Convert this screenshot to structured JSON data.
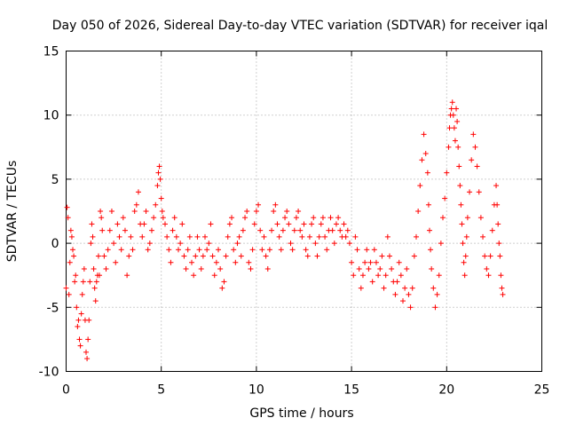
{
  "chart_data": {
    "type": "scatter",
    "title": "Day 050 of 2026, Sidereal Day-to-day VTEC variation (SDTVAR) for receiver iqal",
    "xlabel": "GPS time / hours",
    "ylabel": "SDTVAR / TECUs",
    "xlim": [
      0,
      25
    ],
    "ylim": [
      -10,
      15
    ],
    "x_ticks": [
      0,
      5,
      10,
      15,
      20,
      25
    ],
    "x_tick_labels": [
      "0",
      "5",
      "10",
      "15",
      "20",
      "25"
    ],
    "y_ticks": [
      -10,
      -5,
      0,
      5,
      10,
      15
    ],
    "y_tick_labels": [
      "-10",
      "-5",
      "0",
      "5",
      "10",
      "15"
    ],
    "grid": true,
    "marker": "+",
    "color": "#ff0000",
    "series": [
      {
        "name": "SDTVAR",
        "points": [
          [
            0.0,
            -3.5
          ],
          [
            0.05,
            2.8
          ],
          [
            0.1,
            2.0
          ],
          [
            0.15,
            -4.0
          ],
          [
            0.2,
            -1.5
          ],
          [
            0.25,
            1.0
          ],
          [
            0.3,
            0.5
          ],
          [
            0.35,
            -0.5
          ],
          [
            0.4,
            -1.0
          ],
          [
            0.45,
            -3.0
          ],
          [
            0.5,
            -2.5
          ],
          [
            0.55,
            -5.0
          ],
          [
            0.6,
            -6.5
          ],
          [
            0.65,
            -6.0
          ],
          [
            0.7,
            -7.5
          ],
          [
            0.75,
            -8.0
          ],
          [
            0.8,
            -5.5
          ],
          [
            0.85,
            -4.0
          ],
          [
            0.9,
            -3.0
          ],
          [
            0.95,
            -2.0
          ],
          [
            1.0,
            -6.0
          ],
          [
            1.05,
            -8.5
          ],
          [
            1.1,
            -9.0
          ],
          [
            1.15,
            -7.5
          ],
          [
            1.2,
            -6.0
          ],
          [
            1.25,
            -3.0
          ],
          [
            1.3,
            0.0
          ],
          [
            1.35,
            1.5
          ],
          [
            1.4,
            0.5
          ],
          [
            1.45,
            -2.0
          ],
          [
            1.5,
            -3.5
          ],
          [
            1.55,
            -4.5
          ],
          [
            1.6,
            -3.0
          ],
          [
            1.65,
            -2.5
          ],
          [
            1.7,
            -1.0
          ],
          [
            1.75,
            -2.5
          ],
          [
            1.8,
            2.5
          ],
          [
            1.85,
            2.0
          ],
          [
            1.9,
            1.0
          ],
          [
            2.0,
            -1.0
          ],
          [
            2.1,
            -2.0
          ],
          [
            2.2,
            -0.5
          ],
          [
            2.3,
            1.0
          ],
          [
            2.4,
            2.5
          ],
          [
            2.5,
            0.0
          ],
          [
            2.6,
            -1.5
          ],
          [
            2.7,
            1.5
          ],
          [
            2.8,
            0.5
          ],
          [
            2.9,
            -0.5
          ],
          [
            3.0,
            2.0
          ],
          [
            3.1,
            1.0
          ],
          [
            3.2,
            -2.5
          ],
          [
            3.3,
            -1.0
          ],
          [
            3.4,
            0.5
          ],
          [
            3.5,
            -0.5
          ],
          [
            3.6,
            2.5
          ],
          [
            3.7,
            3.0
          ],
          [
            3.8,
            4.0
          ],
          [
            3.9,
            1.5
          ],
          [
            4.0,
            0.5
          ],
          [
            4.1,
            1.5
          ],
          [
            4.2,
            2.5
          ],
          [
            4.3,
            -0.5
          ],
          [
            4.4,
            0.0
          ],
          [
            4.5,
            1.0
          ],
          [
            4.6,
            2.0
          ],
          [
            4.7,
            3.0
          ],
          [
            4.8,
            4.5
          ],
          [
            4.85,
            5.5
          ],
          [
            4.9,
            6.0
          ],
          [
            4.95,
            5.0
          ],
          [
            5.0,
            3.5
          ],
          [
            5.05,
            2.5
          ],
          [
            5.1,
            2.0
          ],
          [
            5.2,
            1.5
          ],
          [
            5.3,
            0.5
          ],
          [
            5.4,
            -0.5
          ],
          [
            5.5,
            -1.5
          ],
          [
            5.6,
            1.0
          ],
          [
            5.7,
            2.0
          ],
          [
            5.8,
            0.5
          ],
          [
            5.9,
            -0.5
          ],
          [
            6.0,
            0.0
          ],
          [
            6.1,
            1.5
          ],
          [
            6.2,
            -1.0
          ],
          [
            6.3,
            -2.0
          ],
          [
            6.4,
            -0.5
          ],
          [
            6.5,
            0.5
          ],
          [
            6.6,
            -1.5
          ],
          [
            6.7,
            -2.5
          ],
          [
            6.8,
            -1.0
          ],
          [
            6.9,
            0.5
          ],
          [
            7.0,
            -0.5
          ],
          [
            7.1,
            -2.0
          ],
          [
            7.2,
            -1.0
          ],
          [
            7.3,
            0.5
          ],
          [
            7.4,
            -0.5
          ],
          [
            7.5,
            0.0
          ],
          [
            7.6,
            1.5
          ],
          [
            7.7,
            -1.0
          ],
          [
            7.8,
            -2.5
          ],
          [
            7.9,
            -1.5
          ],
          [
            8.0,
            -0.5
          ],
          [
            8.1,
            -2.0
          ],
          [
            8.2,
            -3.5
          ],
          [
            8.3,
            -3.0
          ],
          [
            8.4,
            -1.0
          ],
          [
            8.5,
            0.5
          ],
          [
            8.6,
            1.5
          ],
          [
            8.7,
            2.0
          ],
          [
            8.8,
            -0.5
          ],
          [
            8.9,
            -1.5
          ],
          [
            9.0,
            0.0
          ],
          [
            9.1,
            0.5
          ],
          [
            9.2,
            -1.0
          ],
          [
            9.3,
            1.0
          ],
          [
            9.4,
            2.0
          ],
          [
            9.5,
            2.5
          ],
          [
            9.6,
            -1.5
          ],
          [
            9.7,
            -2.0
          ],
          [
            9.8,
            -0.5
          ],
          [
            9.9,
            1.5
          ],
          [
            10.0,
            2.5
          ],
          [
            10.1,
            3.0
          ],
          [
            10.2,
            1.0
          ],
          [
            10.3,
            -0.5
          ],
          [
            10.4,
            0.5
          ],
          [
            10.5,
            -1.0
          ],
          [
            10.6,
            -2.0
          ],
          [
            10.7,
            -0.5
          ],
          [
            10.8,
            1.0
          ],
          [
            10.9,
            2.5
          ],
          [
            11.0,
            3.0
          ],
          [
            11.1,
            1.5
          ],
          [
            11.2,
            0.5
          ],
          [
            11.3,
            -0.5
          ],
          [
            11.4,
            1.0
          ],
          [
            11.5,
            2.0
          ],
          [
            11.6,
            2.5
          ],
          [
            11.7,
            1.5
          ],
          [
            11.8,
            0.0
          ],
          [
            11.9,
            -0.5
          ],
          [
            12.0,
            1.0
          ],
          [
            12.1,
            2.0
          ],
          [
            12.2,
            2.5
          ],
          [
            12.3,
            1.0
          ],
          [
            12.4,
            0.5
          ],
          [
            12.5,
            1.5
          ],
          [
            12.6,
            -0.5
          ],
          [
            12.7,
            -1.0
          ],
          [
            12.8,
            0.5
          ],
          [
            12.9,
            1.5
          ],
          [
            13.0,
            2.0
          ],
          [
            13.1,
            0.0
          ],
          [
            13.2,
            -1.0
          ],
          [
            13.3,
            0.5
          ],
          [
            13.4,
            1.5
          ],
          [
            13.5,
            2.0
          ],
          [
            13.6,
            0.5
          ],
          [
            13.7,
            -0.5
          ],
          [
            13.8,
            1.0
          ],
          [
            13.9,
            2.0
          ],
          [
            14.0,
            1.0
          ],
          [
            14.1,
            0.0
          ],
          [
            14.2,
            1.5
          ],
          [
            14.3,
            2.0
          ],
          [
            14.4,
            1.0
          ],
          [
            14.5,
            0.5
          ],
          [
            14.6,
            1.5
          ],
          [
            14.7,
            0.5
          ],
          [
            14.8,
            1.0
          ],
          [
            14.9,
            0.0
          ],
          [
            15.0,
            -1.5
          ],
          [
            15.1,
            -2.5
          ],
          [
            15.2,
            0.5
          ],
          [
            15.3,
            -0.5
          ],
          [
            15.4,
            -2.0
          ],
          [
            15.5,
            -3.5
          ],
          [
            15.6,
            -2.5
          ],
          [
            15.7,
            -1.5
          ],
          [
            15.8,
            -0.5
          ],
          [
            15.9,
            -2.0
          ],
          [
            16.0,
            -1.5
          ],
          [
            16.1,
            -3.0
          ],
          [
            16.2,
            -0.5
          ],
          [
            16.3,
            -1.5
          ],
          [
            16.4,
            -2.5
          ],
          [
            16.5,
            -2.0
          ],
          [
            16.6,
            -1.0
          ],
          [
            16.7,
            -3.5
          ],
          [
            16.8,
            -2.5
          ],
          [
            16.9,
            0.5
          ],
          [
            17.0,
            -1.0
          ],
          [
            17.1,
            -2.0
          ],
          [
            17.2,
            -3.0
          ],
          [
            17.3,
            -4.0
          ],
          [
            17.4,
            -3.0
          ],
          [
            17.5,
            -1.5
          ],
          [
            17.6,
            -2.5
          ],
          [
            17.7,
            -4.5
          ],
          [
            17.8,
            -3.5
          ],
          [
            17.9,
            -2.0
          ],
          [
            18.0,
            -4.0
          ],
          [
            18.1,
            -5.0
          ],
          [
            18.2,
            -3.5
          ],
          [
            18.3,
            -1.0
          ],
          [
            18.4,
            0.5
          ],
          [
            18.5,
            2.5
          ],
          [
            18.6,
            4.5
          ],
          [
            18.7,
            6.5
          ],
          [
            18.8,
            8.5
          ],
          [
            18.9,
            7.0
          ],
          [
            19.0,
            5.5
          ],
          [
            19.05,
            3.0
          ],
          [
            19.1,
            1.0
          ],
          [
            19.15,
            -0.5
          ],
          [
            19.2,
            -2.0
          ],
          [
            19.3,
            -3.5
          ],
          [
            19.4,
            -5.0
          ],
          [
            19.5,
            -4.0
          ],
          [
            19.6,
            -2.5
          ],
          [
            19.7,
            0.0
          ],
          [
            19.8,
            2.0
          ],
          [
            19.9,
            3.5
          ],
          [
            20.0,
            5.5
          ],
          [
            20.1,
            7.5
          ],
          [
            20.15,
            9.0
          ],
          [
            20.2,
            10.0
          ],
          [
            20.25,
            10.5
          ],
          [
            20.3,
            11.0
          ],
          [
            20.35,
            10.0
          ],
          [
            20.4,
            9.0
          ],
          [
            20.45,
            8.0
          ],
          [
            20.5,
            10.5
          ],
          [
            20.55,
            9.5
          ],
          [
            20.6,
            7.5
          ],
          [
            20.65,
            6.0
          ],
          [
            20.7,
            4.5
          ],
          [
            20.75,
            3.0
          ],
          [
            20.8,
            1.5
          ],
          [
            20.85,
            0.0
          ],
          [
            20.9,
            -1.5
          ],
          [
            20.95,
            -2.5
          ],
          [
            21.0,
            -1.0
          ],
          [
            21.05,
            0.5
          ],
          [
            21.1,
            2.0
          ],
          [
            21.2,
            4.0
          ],
          [
            21.3,
            6.5
          ],
          [
            21.4,
            8.5
          ],
          [
            21.5,
            7.5
          ],
          [
            21.6,
            6.0
          ],
          [
            21.7,
            4.0
          ],
          [
            21.8,
            2.0
          ],
          [
            21.9,
            0.5
          ],
          [
            22.0,
            -1.0
          ],
          [
            22.1,
            -2.0
          ],
          [
            22.2,
            -2.5
          ],
          [
            22.3,
            -1.0
          ],
          [
            22.4,
            1.0
          ],
          [
            22.5,
            3.0
          ],
          [
            22.6,
            4.5
          ],
          [
            22.65,
            3.0
          ],
          [
            22.7,
            1.5
          ],
          [
            22.75,
            0.0
          ],
          [
            22.8,
            -1.0
          ],
          [
            22.85,
            -2.5
          ],
          [
            22.9,
            -3.5
          ],
          [
            22.95,
            -4.0
          ]
        ]
      }
    ]
  }
}
